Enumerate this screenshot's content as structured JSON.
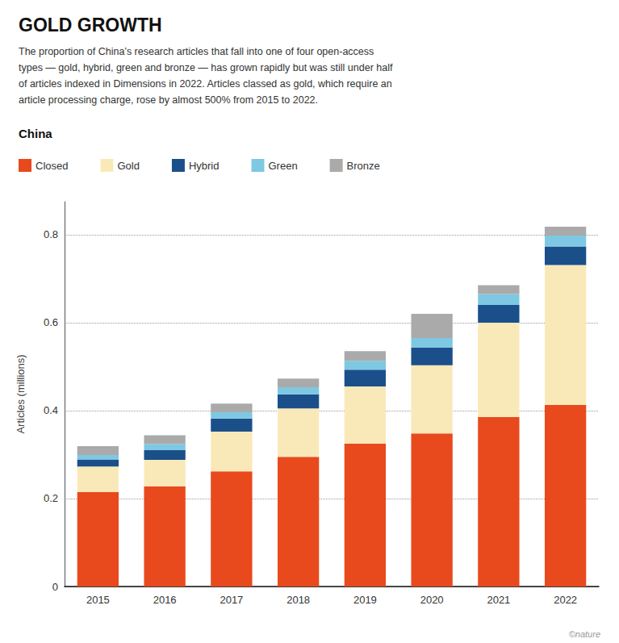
{
  "chart_data": {
    "type": "bar",
    "stacked": true,
    "title": "GOLD GROWTH",
    "subtitle": [
      "The proportion of China’s research articles that fall into one of four open-access",
      "types — gold, hybrid, green and bronze — has grown rapidly but was still under half",
      "of articles indexed in Dimensions in 2022. Articles classed as gold, which require an",
      "article processing charge, rose by almost 500% from 2015 to 2022."
    ],
    "annotations": [
      "China",
      "©nature"
    ],
    "categories": [
      2015,
      2016,
      2017,
      2018,
      2019,
      2020,
      2021,
      2022
    ],
    "series": [
      {
        "name": "Closed",
        "color": "#E8491D",
        "values": [
          0.215,
          0.228,
          0.262,
          0.295,
          0.325,
          0.348,
          0.385,
          0.413
        ]
      },
      {
        "name": "Gold",
        "color": "#FAE9B8",
        "values": [
          0.058,
          0.06,
          0.09,
          0.11,
          0.13,
          0.155,
          0.215,
          0.318
        ]
      },
      {
        "name": "Hybrid",
        "color": "#1B4F8A",
        "values": [
          0.016,
          0.022,
          0.03,
          0.032,
          0.038,
          0.04,
          0.04,
          0.042
        ]
      },
      {
        "name": "Green",
        "color": "#7EC8E3",
        "values": [
          0.01,
          0.014,
          0.014,
          0.016,
          0.02,
          0.022,
          0.025,
          0.025
        ]
      },
      {
        "name": "Bronze",
        "color": "#AAAAAA",
        "values": [
          0.02,
          0.02,
          0.02,
          0.02,
          0.022,
          0.055,
          0.02,
          0.02
        ]
      }
    ],
    "ylabel": "Articles (millions)",
    "ylim": [
      0,
      0.875
    ],
    "yticks": [
      0,
      0.2,
      0.4,
      0.6,
      0.8
    ],
    "grid": true,
    "legend": "top"
  }
}
